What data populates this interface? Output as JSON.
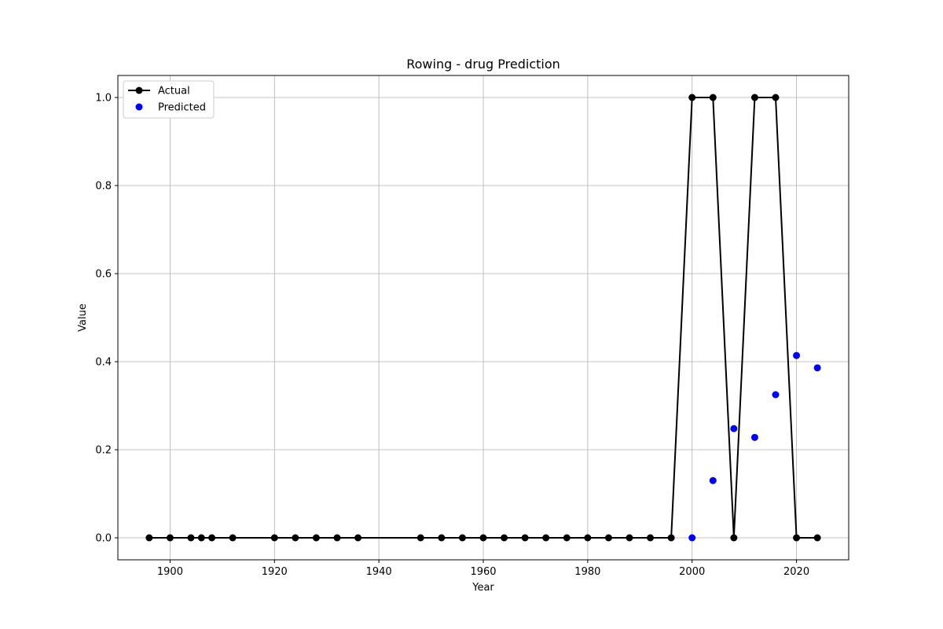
{
  "chart_data": {
    "type": "line",
    "title": "Rowing - drug Prediction",
    "xlabel": "Year",
    "ylabel": "Value",
    "xlim": [
      1890,
      2030
    ],
    "ylim": [
      -0.05,
      1.05
    ],
    "xticks": [
      1900,
      1920,
      1940,
      1960,
      1980,
      2000,
      2020
    ],
    "yticks": [
      0.0,
      0.2,
      0.4,
      0.6,
      0.8,
      1.0
    ],
    "grid": true,
    "legend_position": "top-left",
    "series": [
      {
        "name": "Actual",
        "style": "line-with-markers",
        "color": "#000000",
        "x": [
          1896,
          1900,
          1904,
          1906,
          1908,
          1912,
          1920,
          1924,
          1928,
          1932,
          1936,
          1948,
          1952,
          1956,
          1960,
          1964,
          1968,
          1972,
          1976,
          1980,
          1984,
          1988,
          1992,
          1996,
          2000,
          2004,
          2008,
          2012,
          2016,
          2020,
          2024
        ],
        "y": [
          0,
          0,
          0,
          0,
          0,
          0,
          0,
          0,
          0,
          0,
          0,
          0,
          0,
          0,
          0,
          0,
          0,
          0,
          0,
          0,
          0,
          0,
          0,
          0,
          1,
          1,
          0,
          1,
          1,
          0,
          0
        ]
      },
      {
        "name": "Predicted",
        "style": "scatter",
        "color": "#0000ff",
        "x": [
          2000,
          2004,
          2008,
          2012,
          2016,
          2020,
          2024
        ],
        "y": [
          0.0,
          0.13,
          0.248,
          0.228,
          0.325,
          0.414,
          0.386
        ]
      }
    ]
  }
}
